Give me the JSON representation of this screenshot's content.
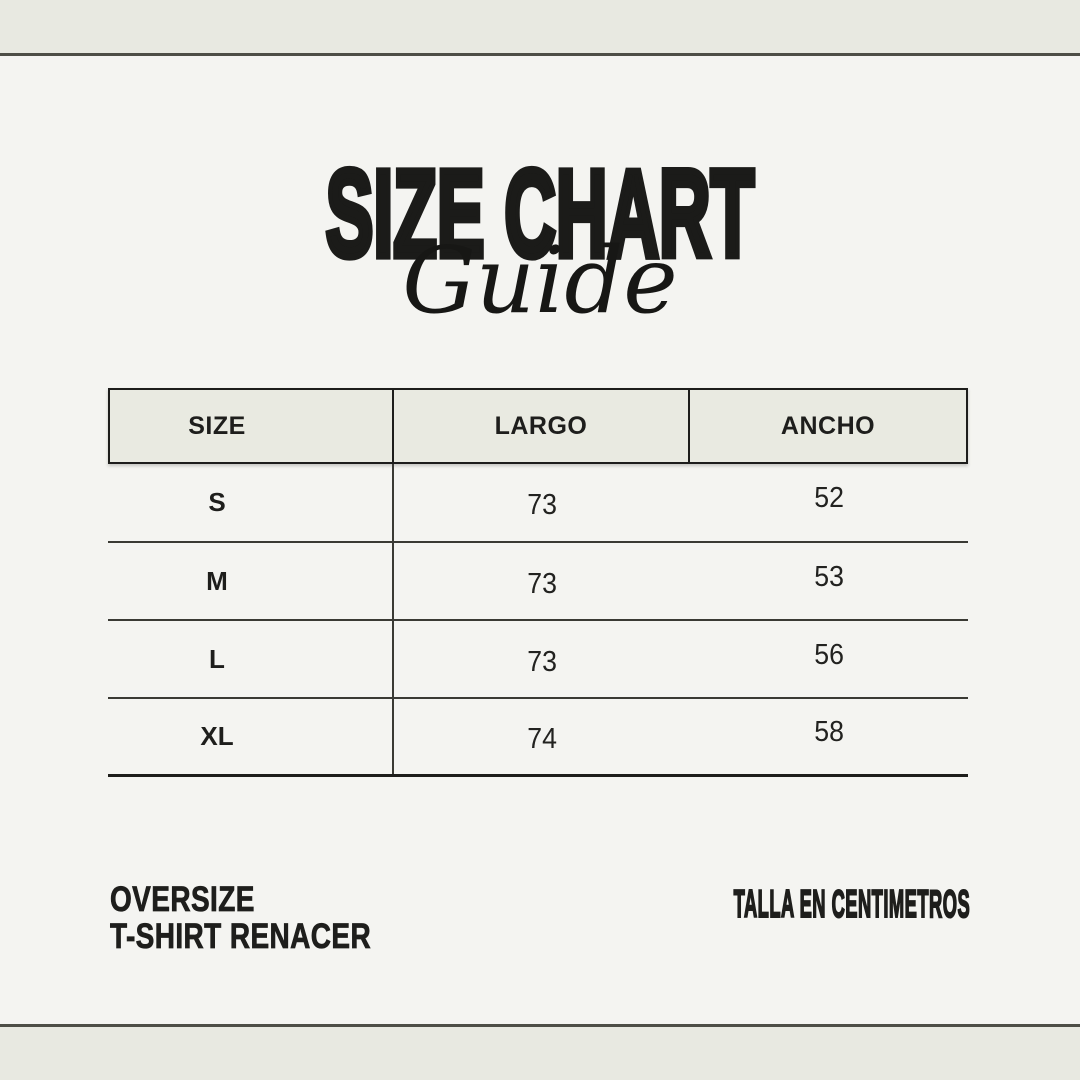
{
  "poster": {
    "title_main": "SIZE CHART",
    "title_script": "Guide"
  },
  "table": {
    "headers": [
      "SIZE",
      "LARGO",
      "ANCHO"
    ],
    "rows": [
      {
        "size": "S",
        "largo": "73",
        "ancho": "52"
      },
      {
        "size": "M",
        "largo": "73",
        "ancho": "53"
      },
      {
        "size": "L",
        "largo": "73",
        "ancho": "56"
      },
      {
        "size": "XL",
        "largo": "74",
        "ancho": "58"
      }
    ]
  },
  "footer": {
    "product_line1": "OVERSIZE",
    "product_line2": "T-SHIRT RENACER",
    "unit_note": "TALLA EN CENTIMETROS"
  },
  "colors": {
    "background": "#f4f4f1",
    "band": "#e8e9e1",
    "rule": "#4d4e46",
    "header_fill": "#e9eae1",
    "table_border": "#1d1d1b",
    "row_divider": "#3a3a34",
    "text": "#1e1e1c"
  }
}
